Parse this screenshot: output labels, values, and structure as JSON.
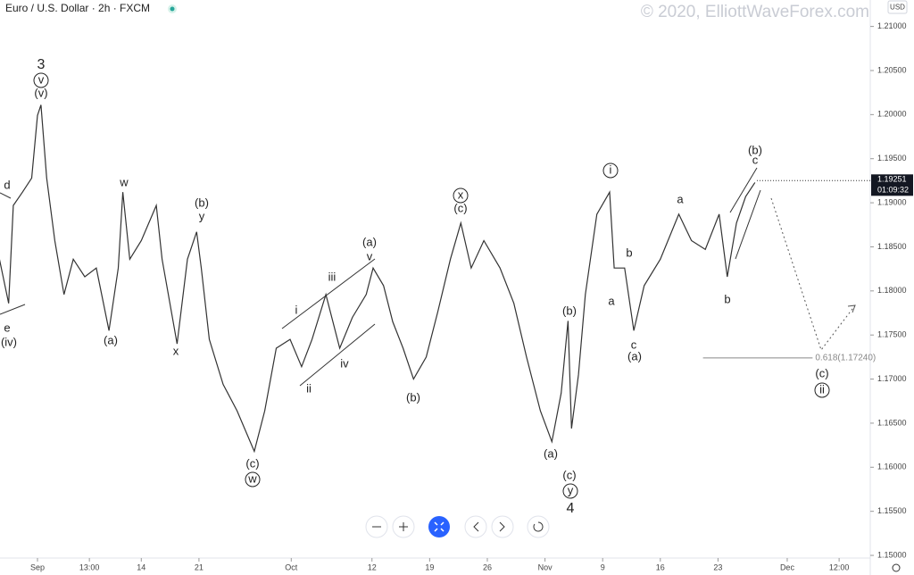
{
  "chart_data": {
    "type": "line",
    "title": "Euro / U.S. Dollar · 2h · FXCM",
    "watermark": "© 2020, ElliottWaveForex.com",
    "currency": "USD",
    "series": [
      {
        "name": "EUR/USD",
        "color": "#333333",
        "x": [
          -3.3,
          -2.5,
          -2.1,
          -1.3,
          -0.5,
          0,
          0.3,
          0.8,
          1.5,
          2.3,
          3.1,
          4.1,
          5.1,
          6.2,
          7.0,
          7.4,
          8.0,
          9.0,
          10.3,
          10.8,
          12.1,
          13.0,
          13.8,
          14.2,
          14.9,
          16.1,
          17.3,
          18.8,
          19.7,
          20.7,
          21.9,
          22.9,
          23.8,
          25.0,
          26.2,
          27.3,
          28.5,
          29.1,
          30.0,
          30.8,
          31.7,
          32.6,
          33.7,
          34.7,
          35.8,
          36.7,
          37.6,
          38.7,
          40.1,
          41.3,
          42.4,
          43.6,
          44.6,
          45.4,
          46.0,
          46.3,
          46.9,
          47.5,
          48.5,
          49.6,
          50.0,
          50.9,
          51.7,
          52.6,
          54.0,
          55.6,
          56.7,
          57.9,
          59.1,
          59.8,
          60.6,
          61.4,
          62.2
        ],
        "values": [
          1.1836,
          1.1786,
          1.1897,
          1.1912,
          1.1928,
          1.1999,
          1.2011,
          1.1928,
          1.1857,
          1.1796,
          1.1836,
          1.1816,
          1.1826,
          1.1755,
          1.1826,
          1.1912,
          1.1836,
          1.1857,
          1.1897,
          1.1836,
          1.174,
          1.1836,
          1.1867,
          1.1826,
          1.1745,
          1.1694,
          1.1664,
          1.1618,
          1.1664,
          1.1735,
          1.1745,
          1.1714,
          1.1745,
          1.1796,
          1.1735,
          1.177,
          1.1796,
          1.1826,
          1.1806,
          1.1765,
          1.1735,
          1.17,
          1.1725,
          1.1776,
          1.1836,
          1.1877,
          1.1826,
          1.1857,
          1.1826,
          1.1786,
          1.1725,
          1.1664,
          1.1629,
          1.1684,
          1.1766,
          1.1644,
          1.1705,
          1.1796,
          1.1887,
          1.1912,
          1.1826,
          1.1826,
          1.1755,
          1.1806,
          1.1836,
          1.1887,
          1.1857,
          1.1847,
          1.1887,
          1.1816,
          1.1877,
          1.1907,
          1.1923
        ]
      }
    ],
    "xlim": [
      -3.25,
      72.2
    ],
    "xticks": [
      {
        "value": 0,
        "label": "Sep"
      },
      {
        "value": 4.5,
        "label": "13:00"
      },
      {
        "value": 9,
        "label": "14"
      },
      {
        "value": 14,
        "label": "21"
      },
      {
        "value": 22,
        "label": "Oct"
      },
      {
        "value": 29,
        "label": "12"
      },
      {
        "value": 34,
        "label": "19"
      },
      {
        "value": 39,
        "label": "26"
      },
      {
        "value": 44,
        "label": "Nov"
      },
      {
        "value": 49,
        "label": "9"
      },
      {
        "value": 54,
        "label": "16"
      },
      {
        "value": 59,
        "label": "23"
      },
      {
        "value": 65,
        "label": "Dec"
      },
      {
        "value": 69.5,
        "label": "12:00"
      }
    ],
    "ylim": [
      1.1497,
      1.213
    ],
    "yticks": [
      {
        "value": 1.15,
        "label": "1.15000"
      },
      {
        "value": 1.155,
        "label": "1.15500"
      },
      {
        "value": 1.16,
        "label": "1.16000"
      },
      {
        "value": 1.165,
        "label": "1.16500"
      },
      {
        "value": 1.17,
        "label": "1.17000"
      },
      {
        "value": 1.175,
        "label": "1.17500"
      },
      {
        "value": 1.18,
        "label": "1.18000"
      },
      {
        "value": 1.185,
        "label": "1.18500"
      },
      {
        "value": 1.19,
        "label": "1.19000"
      },
      {
        "value": 1.195,
        "label": "1.19500"
      },
      {
        "value": 1.2,
        "label": "1.20000"
      },
      {
        "value": 1.205,
        "label": "1.20500"
      },
      {
        "value": 1.21,
        "label": "1.21000"
      }
    ],
    "last_price": {
      "value": 1.19251,
      "label": "1.19251"
    },
    "countdown": "01:09:32",
    "fib_level": {
      "value": 1.1724,
      "label": "0.618(1.17240)",
      "x": [
        57.7,
        67.2
      ]
    },
    "annotations": [
      {
        "text": "3"
      },
      {
        "text": "v",
        "circled": true
      },
      {
        "text": "(v)"
      },
      {
        "text": "d"
      },
      {
        "text": "e"
      },
      {
        "text": "(iv)"
      },
      {
        "text": "(a)"
      },
      {
        "text": "w"
      },
      {
        "text": "x"
      },
      {
        "text": "(b)"
      },
      {
        "text": "y"
      },
      {
        "text": "(c)"
      },
      {
        "text": "w",
        "circled": true
      },
      {
        "text": "i"
      },
      {
        "text": "ii"
      },
      {
        "text": "iii"
      },
      {
        "text": "iv"
      },
      {
        "text": "(a)"
      },
      {
        "text": "v"
      },
      {
        "text": "(b)"
      },
      {
        "text": "x",
        "circled": true
      },
      {
        "text": "(c)"
      },
      {
        "text": "(b)"
      },
      {
        "text": "(a)"
      },
      {
        "text": "(c)"
      },
      {
        "text": "y",
        "circled": true
      },
      {
        "text": "4"
      },
      {
        "text": "i",
        "circled": true
      },
      {
        "text": "a"
      },
      {
        "text": "b"
      },
      {
        "text": "c"
      },
      {
        "text": "(a)"
      },
      {
        "text": "a"
      },
      {
        "text": "b"
      },
      {
        "text": "(b)"
      },
      {
        "text": "c"
      },
      {
        "text": "(c)"
      },
      {
        "text": "ii",
        "circled": true
      }
    ]
  }
}
